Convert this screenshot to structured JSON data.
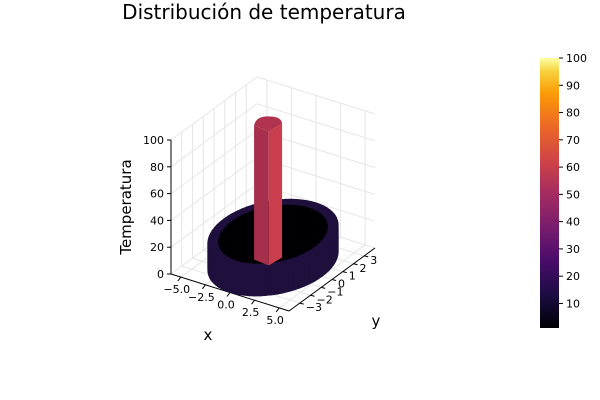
{
  "chart_data": {
    "type": "surface3d",
    "title": "Distribución de temperatura",
    "xlabel": "x",
    "ylabel": "y",
    "zlabel": "Temperatura",
    "x_ticks": [
      "−5.0",
      "−2.5",
      "0.0",
      "2.5",
      "5.0"
    ],
    "x_tick_values": [
      -5,
      -2.5,
      0,
      2.5,
      5
    ],
    "y_ticks": [
      "−3",
      "−2",
      "−1",
      "0",
      "1",
      "2",
      "3"
    ],
    "y_tick_values": [
      -3,
      -2,
      -1,
      0,
      1,
      2,
      3
    ],
    "z_ticks": [
      "0",
      "20",
      "40",
      "60",
      "80",
      "100"
    ],
    "z_tick_values": [
      0,
      20,
      40,
      60,
      80,
      100
    ],
    "xlim": [
      -6,
      6
    ],
    "ylim": [
      -4,
      4
    ],
    "zlim": [
      0,
      100
    ],
    "grid": true,
    "colormap": "inferno",
    "colorbar": {
      "ticks": [
        "10",
        "20",
        "30",
        "40",
        "50",
        "60",
        "70",
        "80",
        "90",
        "100"
      ],
      "tick_values": [
        10,
        20,
        30,
        40,
        50,
        60,
        70,
        80,
        90,
        100
      ],
      "range": [
        1,
        100
      ]
    },
    "surfaces": [
      {
        "name": "outer_ring",
        "shape": "annulus",
        "center": [
          0,
          0
        ],
        "r_outer": 5,
        "r_inner": 4.2,
        "z_bottom": 0,
        "z_top": 20,
        "temperature": 10,
        "color": "#1e0f3c"
      },
      {
        "name": "column",
        "shape": "cylinder",
        "center": [
          -0.5,
          0
        ],
        "radius": 1.0,
        "z_bottom": 0,
        "z_top": 100,
        "temperature": 45,
        "color": "#b8364d"
      }
    ],
    "colors": {
      "ring": "#1e0f3c",
      "ring_inner": "#000004",
      "column_left": "#a62f4c",
      "column_right": "#c93f4d",
      "column_top": "#b0344f"
    }
  }
}
